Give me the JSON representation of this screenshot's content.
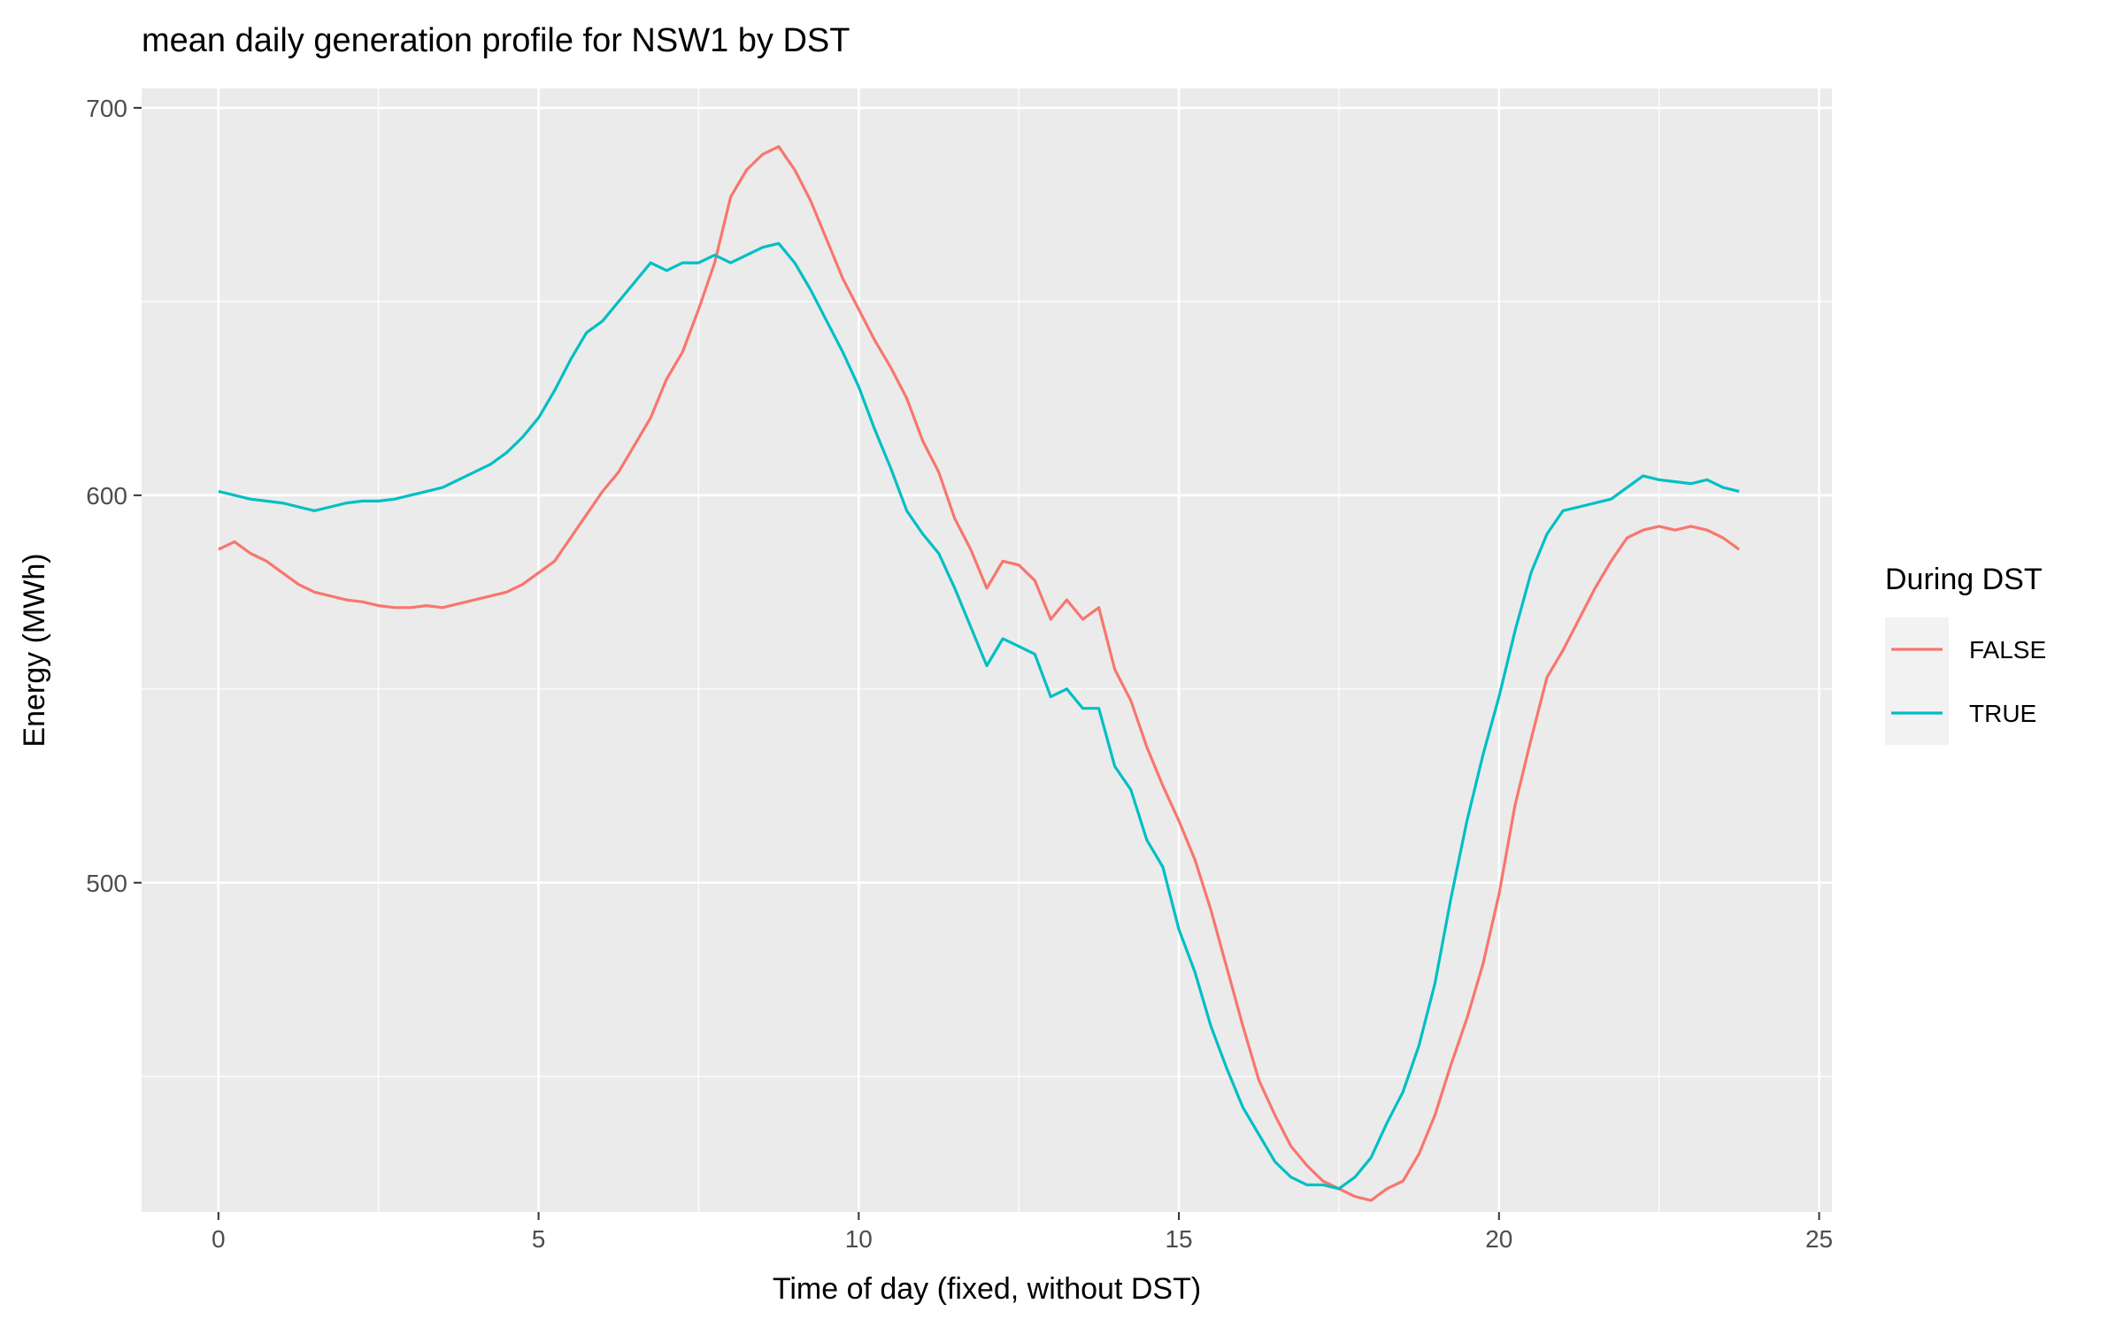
{
  "chart_data": {
    "type": "line",
    "title": "mean daily generation profile for NSW1 by DST",
    "xlabel": "Time of day (fixed, without DST)",
    "ylabel": "Energy (MWh)",
    "xlim": [
      -1.2,
      25.2
    ],
    "ylim": [
      415,
      705
    ],
    "x_ticks": [
      0,
      5,
      10,
      15,
      20,
      25
    ],
    "x_tick_labels": [
      "0",
      "5",
      "10",
      "15",
      "20",
      "25"
    ],
    "y_ticks": [
      500,
      600,
      700
    ],
    "y_tick_labels": [
      "500",
      "600",
      "700"
    ],
    "grid": true,
    "legend": {
      "title": "During DST",
      "position": "right"
    },
    "series": [
      {
        "name": "FALSE",
        "color": "#F8766D",
        "points": [
          [
            0.0,
            586
          ],
          [
            0.25,
            588
          ],
          [
            0.5,
            585
          ],
          [
            0.75,
            583
          ],
          [
            1.0,
            580
          ],
          [
            1.25,
            577
          ],
          [
            1.5,
            575
          ],
          [
            1.75,
            574
          ],
          [
            2.0,
            573
          ],
          [
            2.25,
            572.5
          ],
          [
            2.5,
            571.5
          ],
          [
            2.75,
            571
          ],
          [
            3.0,
            571
          ],
          [
            3.25,
            571.5
          ],
          [
            3.5,
            571
          ],
          [
            3.75,
            572
          ],
          [
            4.0,
            573
          ],
          [
            4.25,
            574
          ],
          [
            4.5,
            575
          ],
          [
            4.75,
            577
          ],
          [
            5.0,
            580
          ],
          [
            5.25,
            583
          ],
          [
            5.5,
            589
          ],
          [
            5.75,
            595
          ],
          [
            6.0,
            601
          ],
          [
            6.25,
            606
          ],
          [
            6.5,
            613
          ],
          [
            6.75,
            620
          ],
          [
            7.0,
            630
          ],
          [
            7.25,
            637
          ],
          [
            7.5,
            648
          ],
          [
            7.75,
            660
          ],
          [
            8.0,
            677
          ],
          [
            8.25,
            684
          ],
          [
            8.5,
            688
          ],
          [
            8.75,
            690
          ],
          [
            9.0,
            684
          ],
          [
            9.25,
            676
          ],
          [
            9.5,
            666
          ],
          [
            9.75,
            656
          ],
          [
            10.0,
            648
          ],
          [
            10.25,
            640
          ],
          [
            10.5,
            633
          ],
          [
            10.75,
            625
          ],
          [
            11.0,
            614
          ],
          [
            11.25,
            606
          ],
          [
            11.5,
            594
          ],
          [
            11.75,
            586
          ],
          [
            12.0,
            576
          ],
          [
            12.25,
            583
          ],
          [
            12.5,
            582
          ],
          [
            12.75,
            578
          ],
          [
            13.0,
            568
          ],
          [
            13.25,
            573
          ],
          [
            13.5,
            568
          ],
          [
            13.75,
            571
          ],
          [
            14.0,
            555
          ],
          [
            14.25,
            547
          ],
          [
            14.5,
            535
          ],
          [
            14.75,
            525
          ],
          [
            15.0,
            516
          ],
          [
            15.25,
            506
          ],
          [
            15.5,
            493
          ],
          [
            15.75,
            478
          ],
          [
            16.0,
            463
          ],
          [
            16.25,
            449
          ],
          [
            16.5,
            440
          ],
          [
            16.75,
            432
          ],
          [
            17.0,
            427
          ],
          [
            17.25,
            423
          ],
          [
            17.5,
            421
          ],
          [
            17.75,
            419
          ],
          [
            18.0,
            418
          ],
          [
            18.25,
            421
          ],
          [
            18.5,
            423
          ],
          [
            18.75,
            430
          ],
          [
            19.0,
            440
          ],
          [
            19.25,
            453
          ],
          [
            19.5,
            465
          ],
          [
            19.75,
            479
          ],
          [
            20.0,
            497
          ],
          [
            20.25,
            520
          ],
          [
            20.5,
            537
          ],
          [
            20.75,
            553
          ],
          [
            21.0,
            560
          ],
          [
            21.25,
            568
          ],
          [
            21.5,
            576
          ],
          [
            21.75,
            583
          ],
          [
            22.0,
            589
          ],
          [
            22.25,
            591
          ],
          [
            22.5,
            592
          ],
          [
            22.75,
            591
          ],
          [
            23.0,
            592
          ],
          [
            23.25,
            591
          ],
          [
            23.5,
            589
          ],
          [
            23.75,
            586
          ]
        ]
      },
      {
        "name": "TRUE",
        "color": "#00BFC4",
        "points": [
          [
            0.0,
            601
          ],
          [
            0.25,
            600
          ],
          [
            0.5,
            599
          ],
          [
            0.75,
            598.5
          ],
          [
            1.0,
            598
          ],
          [
            1.25,
            597
          ],
          [
            1.5,
            596
          ],
          [
            1.75,
            597
          ],
          [
            2.0,
            598
          ],
          [
            2.25,
            598.5
          ],
          [
            2.5,
            598.5
          ],
          [
            2.75,
            599
          ],
          [
            3.0,
            600
          ],
          [
            3.25,
            601
          ],
          [
            3.5,
            602
          ],
          [
            3.75,
            604
          ],
          [
            4.0,
            606
          ],
          [
            4.25,
            608
          ],
          [
            4.5,
            611
          ],
          [
            4.75,
            615
          ],
          [
            5.0,
            620
          ],
          [
            5.25,
            627
          ],
          [
            5.5,
            635
          ],
          [
            5.75,
            642
          ],
          [
            6.0,
            645
          ],
          [
            6.25,
            650
          ],
          [
            6.5,
            655
          ],
          [
            6.75,
            660
          ],
          [
            7.0,
            658
          ],
          [
            7.25,
            660
          ],
          [
            7.5,
            660
          ],
          [
            7.75,
            662
          ],
          [
            8.0,
            660
          ],
          [
            8.25,
            662
          ],
          [
            8.5,
            664
          ],
          [
            8.75,
            665
          ],
          [
            9.0,
            660
          ],
          [
            9.25,
            653
          ],
          [
            9.5,
            645
          ],
          [
            9.75,
            637
          ],
          [
            10.0,
            628
          ],
          [
            10.25,
            617
          ],
          [
            10.5,
            607
          ],
          [
            10.75,
            596
          ],
          [
            11.0,
            590
          ],
          [
            11.25,
            585
          ],
          [
            11.5,
            576
          ],
          [
            11.75,
            566
          ],
          [
            12.0,
            556
          ],
          [
            12.25,
            563
          ],
          [
            12.5,
            561
          ],
          [
            12.75,
            559
          ],
          [
            13.0,
            548
          ],
          [
            13.25,
            550
          ],
          [
            13.5,
            545
          ],
          [
            13.75,
            545
          ],
          [
            14.0,
            530
          ],
          [
            14.25,
            524
          ],
          [
            14.5,
            511
          ],
          [
            14.75,
            504
          ],
          [
            15.0,
            488
          ],
          [
            15.25,
            477
          ],
          [
            15.5,
            463
          ],
          [
            15.75,
            452
          ],
          [
            16.0,
            442
          ],
          [
            16.25,
            435
          ],
          [
            16.5,
            428
          ],
          [
            16.75,
            424
          ],
          [
            17.0,
            422
          ],
          [
            17.25,
            422
          ],
          [
            17.5,
            421
          ],
          [
            17.75,
            424
          ],
          [
            18.0,
            429
          ],
          [
            18.25,
            438
          ],
          [
            18.5,
            446
          ],
          [
            18.75,
            458
          ],
          [
            19.0,
            474
          ],
          [
            19.25,
            496
          ],
          [
            19.5,
            516
          ],
          [
            19.75,
            533
          ],
          [
            20.0,
            548
          ],
          [
            20.25,
            565
          ],
          [
            20.5,
            580
          ],
          [
            20.75,
            590
          ],
          [
            21.0,
            596
          ],
          [
            21.25,
            597
          ],
          [
            21.5,
            598
          ],
          [
            21.75,
            599
          ],
          [
            22.0,
            602
          ],
          [
            22.25,
            605
          ],
          [
            22.5,
            604
          ],
          [
            22.75,
            603.5
          ],
          [
            23.0,
            603
          ],
          [
            23.25,
            604
          ],
          [
            23.5,
            602
          ],
          [
            23.75,
            601
          ]
        ]
      }
    ]
  }
}
